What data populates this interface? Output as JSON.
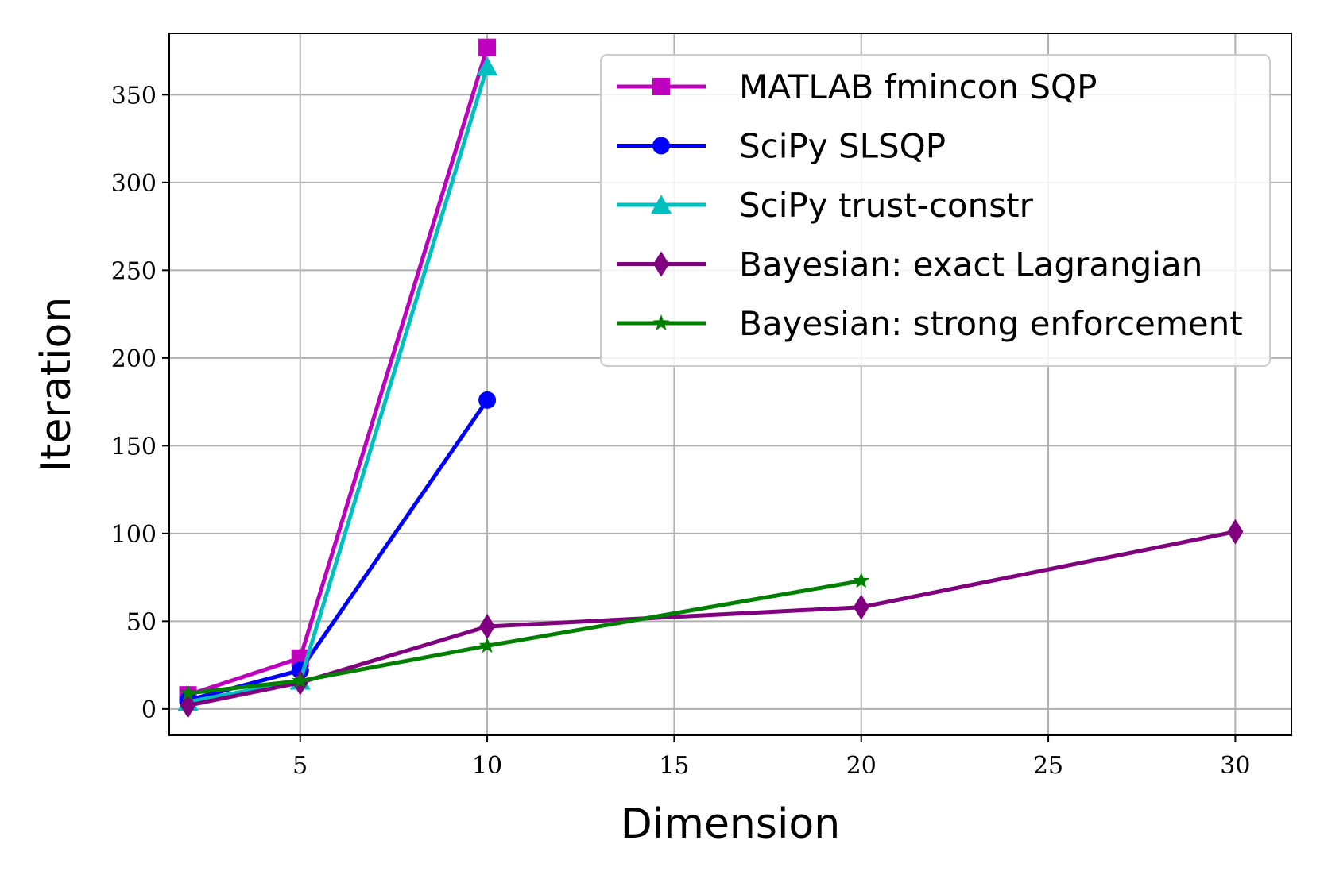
{
  "chart_data": {
    "type": "line",
    "title": "",
    "xlabel": "Dimension",
    "ylabel": "Iteration",
    "xlim": [
      1.5,
      31.5
    ],
    "ylim": [
      -15,
      385
    ],
    "xticks": [
      5,
      10,
      15,
      20,
      25,
      30
    ],
    "yticks": [
      0,
      50,
      100,
      150,
      200,
      250,
      300,
      350
    ],
    "grid": true,
    "legend_position": "top-right",
    "series": [
      {
        "name": "MATLAB fmincon SQP",
        "color": "#bf00bf",
        "marker": "square",
        "x": [
          2,
          5,
          10
        ],
        "y": [
          8,
          29,
          377
        ]
      },
      {
        "name": "SciPy SLSQP",
        "color": "#0000ff",
        "marker": "circle",
        "x": [
          2,
          5,
          10
        ],
        "y": [
          5,
          22,
          176
        ]
      },
      {
        "name": "SciPy trust-constr",
        "color": "#00bfbf",
        "marker": "triangle",
        "x": [
          2,
          5,
          10
        ],
        "y": [
          4,
          16,
          366
        ]
      },
      {
        "name": "Bayesian: exact Lagrangian",
        "color": "#800080",
        "marker": "diamond",
        "x": [
          2,
          5,
          10,
          20,
          30
        ],
        "y": [
          2,
          15,
          47,
          58,
          101
        ]
      },
      {
        "name": "Bayesian: strong enforcement",
        "color": "#008000",
        "marker": "star",
        "x": [
          2,
          5,
          10,
          20
        ],
        "y": [
          9,
          16,
          36,
          73
        ]
      }
    ]
  }
}
